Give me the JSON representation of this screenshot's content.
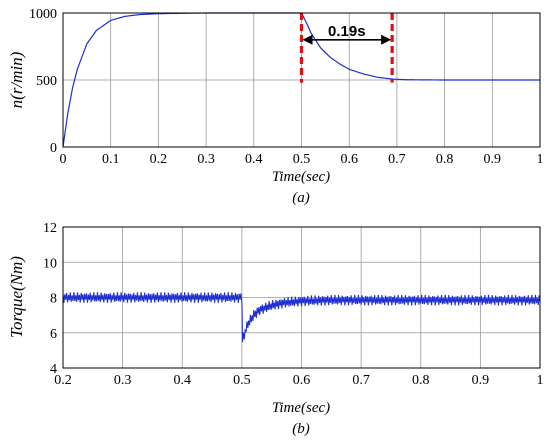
{
  "chart_data": [
    {
      "type": "line",
      "caption": "(a)",
      "xlabel": "Time(sec)",
      "ylabel": "n(r/min)",
      "xlim": [
        0,
        1
      ],
      "ylim": [
        0,
        1000
      ],
      "xticks": [
        "0",
        "0.1",
        "0.2",
        "0.3",
        "0.4",
        "0.5",
        "0.6",
        "0.7",
        "0.8",
        "0.9",
        "1"
      ],
      "yticks": [
        "0",
        "500",
        "1000"
      ],
      "grid": true,
      "series": [
        {
          "color": "#1f2fd0",
          "x": [
            0,
            0.01,
            0.02,
            0.03,
            0.05,
            0.07,
            0.1,
            0.13,
            0.16,
            0.2,
            0.25,
            0.3,
            0.4,
            0.5,
            0.51,
            0.52,
            0.54,
            0.56,
            0.58,
            0.6,
            0.63,
            0.66,
            0.69,
            0.72,
            0.8,
            0.9,
            1.0
          ],
          "y": [
            0,
            250,
            440,
            580,
            770,
            870,
            945,
            975,
            988,
            995,
            998,
            1000,
            1000,
            1000,
            930,
            850,
            740,
            670,
            620,
            580,
            545,
            520,
            507,
            502,
            500,
            500,
            500
          ]
        }
      ],
      "markers": [
        {
          "x": 0.5,
          "color": "#dd1111",
          "style": "dashed"
        },
        {
          "x": 0.69,
          "color": "#dd1111",
          "style": "dashed"
        }
      ],
      "annotation": {
        "text": "0.19s",
        "x_from": 0.5,
        "x_to": 0.69,
        "y": 800
      }
    },
    {
      "type": "line",
      "caption": "(b)",
      "xlabel": "Time(sec)",
      "ylabel": "Torque(Nm)",
      "xlim": [
        0.2,
        1
      ],
      "ylim": [
        4,
        12
      ],
      "xticks": [
        "0.2",
        "0.3",
        "0.4",
        "0.5",
        "0.6",
        "0.7",
        "0.8",
        "0.9",
        "1"
      ],
      "yticks": [
        "4",
        "6",
        "8",
        "10",
        "12"
      ],
      "grid": true,
      "series": [
        {
          "color": "#1f2fd0",
          "x": [
            0.2,
            0.5,
            0.501,
            0.51,
            0.52,
            0.53,
            0.55,
            0.57,
            0.6,
            0.65,
            0.7,
            0.8,
            0.9,
            1.0
          ],
          "y": [
            8.0,
            8.0,
            5.6,
            6.5,
            7.0,
            7.3,
            7.55,
            7.7,
            7.8,
            7.85,
            7.85,
            7.85,
            7.85,
            7.85
          ],
          "ripple": 0.3
        }
      ]
    }
  ]
}
